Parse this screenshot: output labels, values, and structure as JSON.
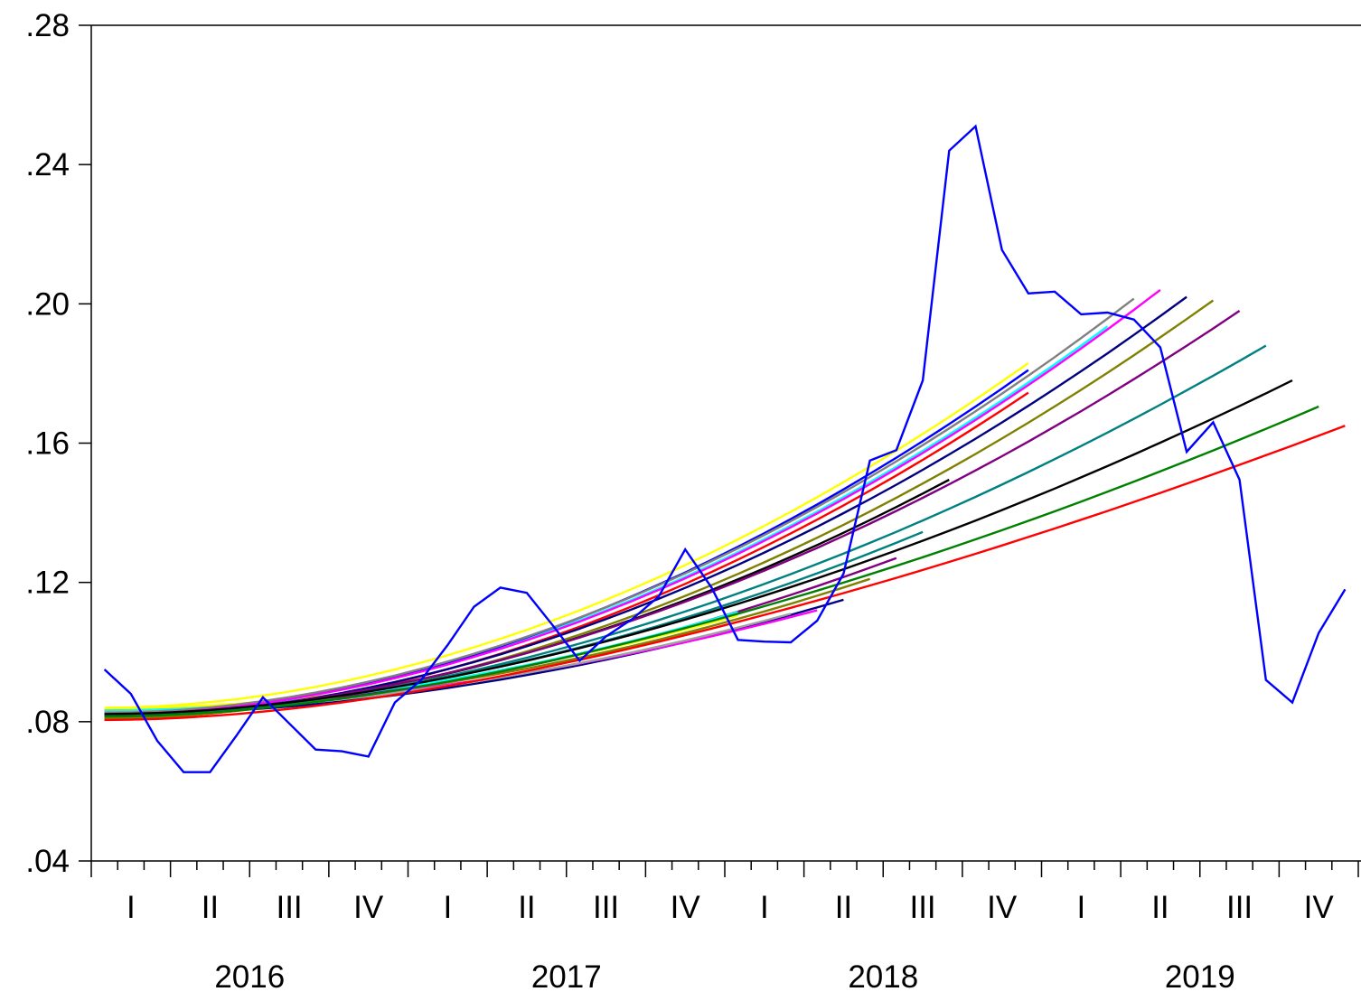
{
  "chart_data": {
    "type": "line",
    "title": "",
    "xlabel": "",
    "ylabel": "",
    "ylim": [
      0.04,
      0.28
    ],
    "yticks": [
      ".04",
      ".08",
      ".12",
      ".16",
      ".20",
      ".24",
      ".28"
    ],
    "ytick_values": [
      0.04,
      0.08,
      0.12,
      0.16,
      0.2,
      0.24,
      0.28
    ],
    "xlim_months": [
      0,
      48
    ],
    "quarter_labels": [
      "I",
      "II",
      "III",
      "IV",
      "I",
      "II",
      "III",
      "IV",
      "I",
      "II",
      "III",
      "IV",
      "I",
      "II",
      "III",
      "IV"
    ],
    "year_labels": [
      "2016",
      "2017",
      "2018",
      "2019"
    ],
    "grid": false,
    "legend": "none",
    "actual": {
      "color": "#0000ff",
      "values": [
        0.095,
        0.088,
        0.0745,
        0.0655,
        0.0655,
        0.076,
        0.087,
        0.0795,
        0.072,
        0.0715,
        0.07,
        0.0855,
        0.092,
        0.102,
        0.113,
        0.1185,
        0.117,
        0.1075,
        0.0975,
        0.1045,
        0.1095,
        0.116,
        0.1295,
        0.1185,
        0.1035,
        0.103,
        0.1028,
        0.109,
        0.1225,
        0.155,
        0.158,
        0.178,
        0.244,
        0.251,
        0.2155,
        0.203,
        0.2035,
        0.197,
        0.1975,
        0.1955,
        0.1875,
        0.1575,
        0.166,
        0.1495,
        0.092,
        0.0855,
        0.1055,
        0.118
      ]
    },
    "forecasts": [
      {
        "color": "#000080",
        "start": 0.082,
        "end": 0.115,
        "end_month": 28
      },
      {
        "color": "#ff00ff",
        "start": 0.0835,
        "end": 0.112,
        "end_month": 27
      },
      {
        "color": "#808000",
        "start": 0.083,
        "end": 0.121,
        "end_month": 29
      },
      {
        "color": "#800080",
        "start": 0.0825,
        "end": 0.127,
        "end_month": 30
      },
      {
        "color": "#008080",
        "start": 0.083,
        "end": 0.1345,
        "end_month": 31
      },
      {
        "color": "#ffff00",
        "start": 0.0838,
        "end": 0.1105,
        "end_month": 24
      },
      {
        "color": "#00ffff",
        "start": 0.0832,
        "end": 0.1115,
        "end_month": 24
      },
      {
        "color": "#a0a0a0",
        "start": 0.0828,
        "end": 0.111,
        "end_month": 26
      },
      {
        "color": "#000000",
        "start": 0.0815,
        "end": 0.1495,
        "end_month": 32
      },
      {
        "color": "#ff0000",
        "start": 0.0808,
        "end": 0.1745,
        "end_month": 35
      },
      {
        "color": "#00ffff",
        "start": 0.0822,
        "end": 0.1935,
        "end_month": 38
      },
      {
        "color": "#ffff00",
        "start": 0.084,
        "end": 0.183,
        "end_month": 35
      },
      {
        "color": "#0000ff",
        "start": 0.0818,
        "end": 0.181,
        "end_month": 35
      },
      {
        "color": "#808080",
        "start": 0.0825,
        "end": 0.2015,
        "end_month": 39
      },
      {
        "color": "#ff00ff",
        "start": 0.082,
        "end": 0.204,
        "end_month": 40
      },
      {
        "color": "#000080",
        "start": 0.0815,
        "end": 0.202,
        "end_month": 41
      },
      {
        "color": "#808000",
        "start": 0.081,
        "end": 0.201,
        "end_month": 42
      },
      {
        "color": "#800080",
        "start": 0.082,
        "end": 0.198,
        "end_month": 43
      },
      {
        "color": "#008080",
        "start": 0.0818,
        "end": 0.188,
        "end_month": 44
      },
      {
        "color": "#000000",
        "start": 0.0822,
        "end": 0.178,
        "end_month": 45
      },
      {
        "color": "#008000",
        "start": 0.0815,
        "end": 0.1705,
        "end_month": 46
      },
      {
        "color": "#ff0000",
        "start": 0.0805,
        "end": 0.165,
        "end_month": 47
      }
    ]
  }
}
